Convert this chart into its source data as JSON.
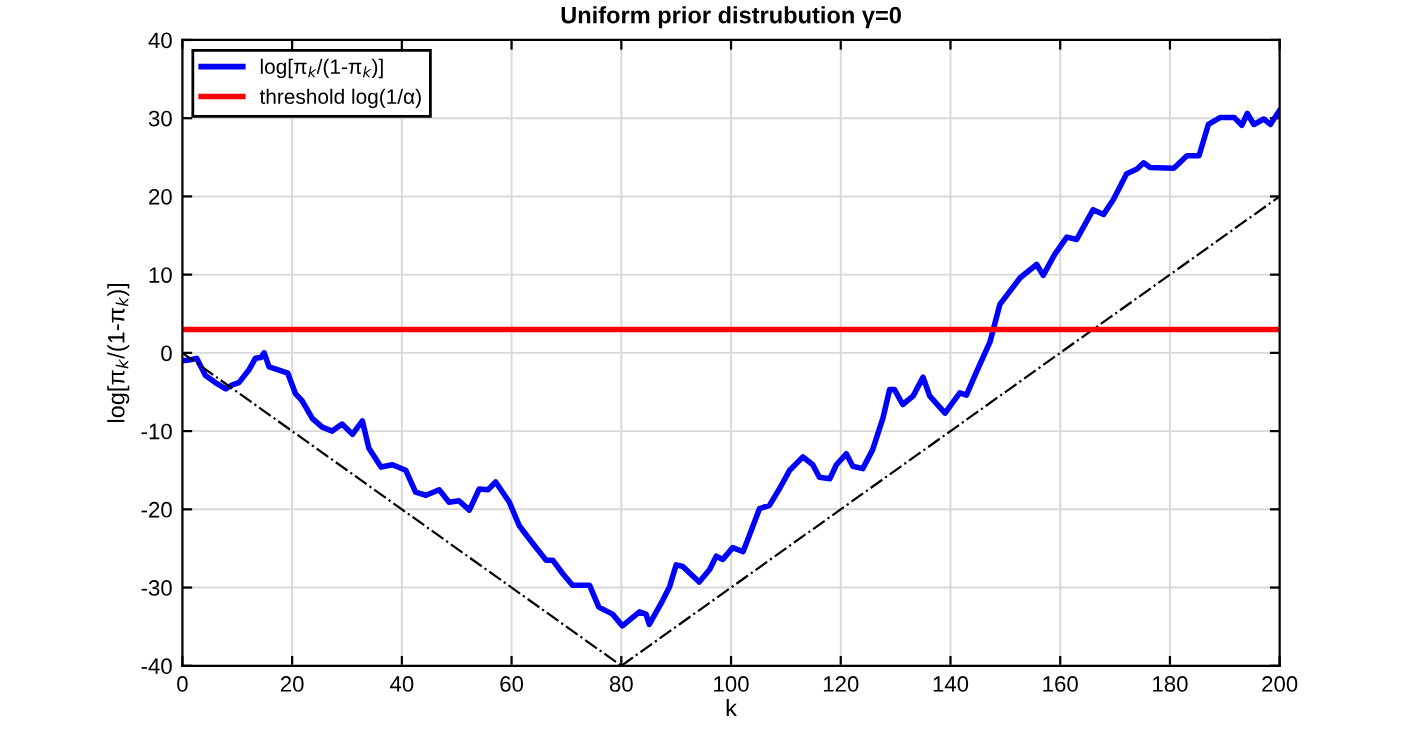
{
  "chart_data": {
    "type": "line",
    "title": "Uniform prior distrubution γ=0",
    "xlabel": "k",
    "ylabel": "log[π$_{k}$/(1-π$_{k}$)]",
    "xlim": [
      0,
      200
    ],
    "ylim": [
      -40,
      40
    ],
    "xticks": [
      0,
      20,
      40,
      60,
      80,
      100,
      120,
      140,
      160,
      180,
      200
    ],
    "yticks": [
      -40,
      -30,
      -20,
      -10,
      0,
      10,
      20,
      30,
      40
    ],
    "grid": true,
    "legend": "top left",
    "series": [
      {
        "name": "log[π$_{k}$/(1-π$_{k}$)]",
        "color": "#0000ff",
        "line_style": "solid",
        "x": [
          0,
          1.2,
          2.6,
          4.2,
          6,
          7.9,
          9.1,
          10.3,
          12.1,
          13.3,
          14.3,
          14.9,
          15.8,
          17.6,
          19.2,
          20.6,
          21.8,
          23.7,
          25.5,
          27.3,
          29.1,
          31,
          32.8,
          34,
          36.2,
          38.3,
          40.7,
          42.5,
          44.4,
          46.8,
          48.6,
          50.4,
          52.3,
          54.1,
          55.7,
          57.1,
          59.6,
          61.4,
          63.8,
          66.3,
          67.5,
          69.3,
          71.1,
          74.2,
          75.9,
          78.4,
          80.2,
          83.3,
          84.5,
          85.1,
          87.5,
          88.8,
          90,
          91.2,
          94.2,
          96.1,
          97.3,
          98.5,
          100.3,
          102.2,
          103.3,
          105.2,
          107,
          108.8,
          110.7,
          113.1,
          114.9,
          116.1,
          118,
          119.2,
          121,
          122.2,
          124,
          125.8,
          127.7,
          128.9,
          129.8,
          131.3,
          133.2,
          135,
          136.2,
          139,
          141.7,
          142.9,
          144.7,
          147.2,
          149,
          152.7,
          155.7,
          156.9,
          159,
          161.2,
          163,
          166,
          167.9,
          169.7,
          172.1,
          174,
          175.2,
          176.4,
          180.7,
          183.1,
          185.3,
          187,
          189.2,
          191.7,
          193.1,
          194.1,
          195.3,
          197.1,
          198.3,
          199.9
        ],
        "values": [
          -1,
          -0.9,
          -0.7,
          -2.9,
          -3.8,
          -4.6,
          -4.1,
          -3.8,
          -2.2,
          -0.7,
          -0.6,
          0,
          -1.8,
          -2.2,
          -2.6,
          -5.2,
          -6.1,
          -8.4,
          -9.5,
          -10,
          -9.1,
          -10.4,
          -8.7,
          -12.2,
          -14.6,
          -14.3,
          -15,
          -17.8,
          -18.2,
          -17.5,
          -19.1,
          -18.9,
          -20.1,
          -17.4,
          -17.5,
          -16.5,
          -19.1,
          -22.1,
          -24.3,
          -26.5,
          -26.5,
          -28.2,
          -29.7,
          -29.7,
          -32.5,
          -33.4,
          -34.9,
          -33.1,
          -33.4,
          -34.7,
          -31.7,
          -29.9,
          -27.1,
          -27.3,
          -29.3,
          -27.7,
          -26,
          -26.4,
          -24.9,
          -25.4,
          -23.4,
          -19.9,
          -19.5,
          -17.4,
          -15,
          -13.3,
          -14.3,
          -15.9,
          -16.1,
          -14.3,
          -12.9,
          -14.5,
          -14.8,
          -12.4,
          -8.3,
          -4.7,
          -4.7,
          -6.6,
          -5.5,
          -3.1,
          -5.5,
          -7.7,
          -5.1,
          -5.4,
          -2.5,
          1.4,
          6.2,
          9.6,
          11.3,
          9.9,
          12.6,
          14.8,
          14.5,
          18.3,
          17.7,
          19.6,
          22.9,
          23.5,
          24.3,
          23.7,
          23.6,
          25.2,
          25.2,
          29.2,
          30.1,
          30.1,
          29.1,
          30.6,
          29.2,
          29.9,
          29.2,
          30.9
        ]
      },
      {
        "color": "#000000",
        "line_style": "dashed",
        "x": [
          0,
          80
        ],
        "values": [
          0,
          -40
        ]
      },
      {
        "color": "#000000",
        "line_style": "dashed",
        "x": [
          80,
          200
        ],
        "values": [
          -40,
          20
        ]
      }
    ],
    "ref_lines": [
      {
        "axis": "y",
        "value": 3,
        "label": "threshold log(1/α)",
        "color": "#ff0000",
        "line_style": "solid"
      }
    ]
  }
}
